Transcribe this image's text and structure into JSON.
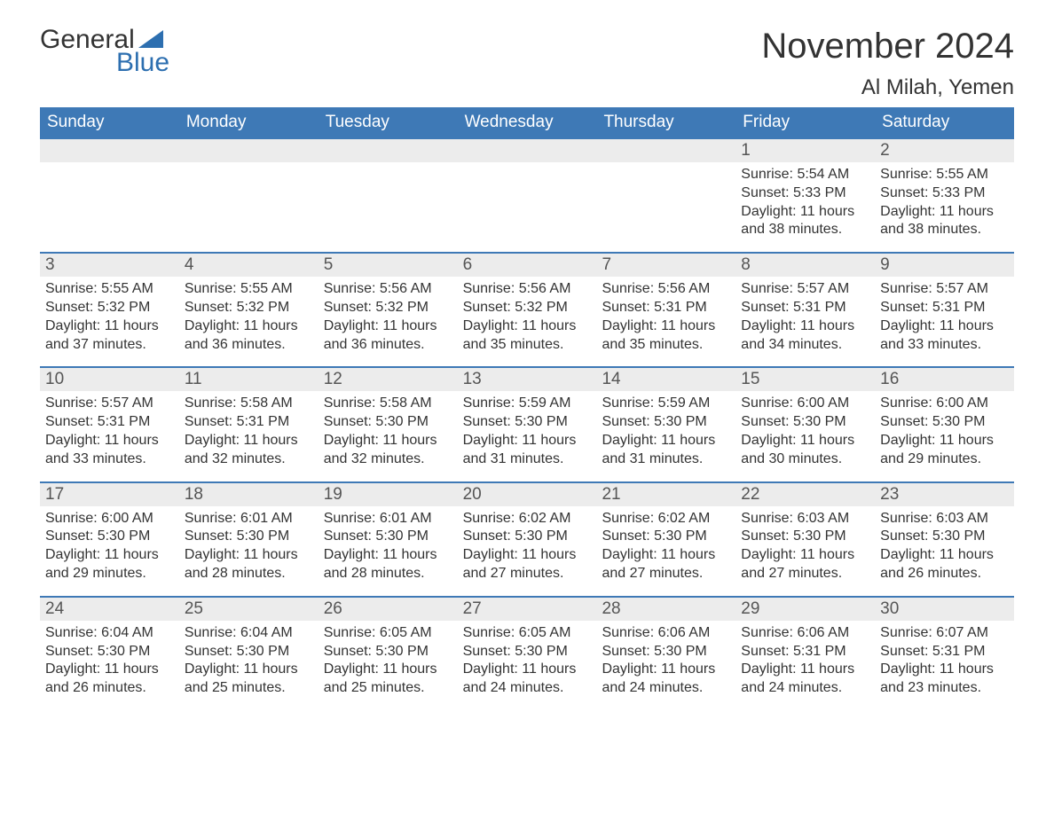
{
  "brand": {
    "general": "General",
    "blue": "Blue"
  },
  "title": {
    "month": "November 2024",
    "location": "Al Milah, Yemen"
  },
  "colors": {
    "header_bg": "#3e79b6",
    "header_text": "#ffffff",
    "daynum_bg": "#ececec",
    "daynum_border": "#3e79b6",
    "body_text": "#333333",
    "brand_blue": "#2d6fb0",
    "page_bg": "#ffffff"
  },
  "fonts": {
    "base_family": "Arial",
    "title_size_pt": 40,
    "location_size_pt": 24,
    "dow_size_pt": 19,
    "body_size_pt": 16
  },
  "dow": [
    "Sunday",
    "Monday",
    "Tuesday",
    "Wednesday",
    "Thursday",
    "Friday",
    "Saturday"
  ],
  "labels": {
    "sunrise": "Sunrise:",
    "sunset": "Sunset:",
    "daylight": "Daylight:"
  },
  "weeks": [
    [
      {
        "blank": true
      },
      {
        "blank": true
      },
      {
        "blank": true
      },
      {
        "blank": true
      },
      {
        "blank": true
      },
      {
        "n": 1,
        "sunrise": "5:54 AM",
        "sunset": "5:33 PM",
        "daylight": "11 hours and 38 minutes."
      },
      {
        "n": 2,
        "sunrise": "5:55 AM",
        "sunset": "5:33 PM",
        "daylight": "11 hours and 38 minutes."
      }
    ],
    [
      {
        "n": 3,
        "sunrise": "5:55 AM",
        "sunset": "5:32 PM",
        "daylight": "11 hours and 37 minutes."
      },
      {
        "n": 4,
        "sunrise": "5:55 AM",
        "sunset": "5:32 PM",
        "daylight": "11 hours and 36 minutes."
      },
      {
        "n": 5,
        "sunrise": "5:56 AM",
        "sunset": "5:32 PM",
        "daylight": "11 hours and 36 minutes."
      },
      {
        "n": 6,
        "sunrise": "5:56 AM",
        "sunset": "5:32 PM",
        "daylight": "11 hours and 35 minutes."
      },
      {
        "n": 7,
        "sunrise": "5:56 AM",
        "sunset": "5:31 PM",
        "daylight": "11 hours and 35 minutes."
      },
      {
        "n": 8,
        "sunrise": "5:57 AM",
        "sunset": "5:31 PM",
        "daylight": "11 hours and 34 minutes."
      },
      {
        "n": 9,
        "sunrise": "5:57 AM",
        "sunset": "5:31 PM",
        "daylight": "11 hours and 33 minutes."
      }
    ],
    [
      {
        "n": 10,
        "sunrise": "5:57 AM",
        "sunset": "5:31 PM",
        "daylight": "11 hours and 33 minutes."
      },
      {
        "n": 11,
        "sunrise": "5:58 AM",
        "sunset": "5:31 PM",
        "daylight": "11 hours and 32 minutes."
      },
      {
        "n": 12,
        "sunrise": "5:58 AM",
        "sunset": "5:30 PM",
        "daylight": "11 hours and 32 minutes."
      },
      {
        "n": 13,
        "sunrise": "5:59 AM",
        "sunset": "5:30 PM",
        "daylight": "11 hours and 31 minutes."
      },
      {
        "n": 14,
        "sunrise": "5:59 AM",
        "sunset": "5:30 PM",
        "daylight": "11 hours and 31 minutes."
      },
      {
        "n": 15,
        "sunrise": "6:00 AM",
        "sunset": "5:30 PM",
        "daylight": "11 hours and 30 minutes."
      },
      {
        "n": 16,
        "sunrise": "6:00 AM",
        "sunset": "5:30 PM",
        "daylight": "11 hours and 29 minutes."
      }
    ],
    [
      {
        "n": 17,
        "sunrise": "6:00 AM",
        "sunset": "5:30 PM",
        "daylight": "11 hours and 29 minutes."
      },
      {
        "n": 18,
        "sunrise": "6:01 AM",
        "sunset": "5:30 PM",
        "daylight": "11 hours and 28 minutes."
      },
      {
        "n": 19,
        "sunrise": "6:01 AM",
        "sunset": "5:30 PM",
        "daylight": "11 hours and 28 minutes."
      },
      {
        "n": 20,
        "sunrise": "6:02 AM",
        "sunset": "5:30 PM",
        "daylight": "11 hours and 27 minutes."
      },
      {
        "n": 21,
        "sunrise": "6:02 AM",
        "sunset": "5:30 PM",
        "daylight": "11 hours and 27 minutes."
      },
      {
        "n": 22,
        "sunrise": "6:03 AM",
        "sunset": "5:30 PM",
        "daylight": "11 hours and 27 minutes."
      },
      {
        "n": 23,
        "sunrise": "6:03 AM",
        "sunset": "5:30 PM",
        "daylight": "11 hours and 26 minutes."
      }
    ],
    [
      {
        "n": 24,
        "sunrise": "6:04 AM",
        "sunset": "5:30 PM",
        "daylight": "11 hours and 26 minutes."
      },
      {
        "n": 25,
        "sunrise": "6:04 AM",
        "sunset": "5:30 PM",
        "daylight": "11 hours and 25 minutes."
      },
      {
        "n": 26,
        "sunrise": "6:05 AM",
        "sunset": "5:30 PM",
        "daylight": "11 hours and 25 minutes."
      },
      {
        "n": 27,
        "sunrise": "6:05 AM",
        "sunset": "5:30 PM",
        "daylight": "11 hours and 24 minutes."
      },
      {
        "n": 28,
        "sunrise": "6:06 AM",
        "sunset": "5:30 PM",
        "daylight": "11 hours and 24 minutes."
      },
      {
        "n": 29,
        "sunrise": "6:06 AM",
        "sunset": "5:31 PM",
        "daylight": "11 hours and 24 minutes."
      },
      {
        "n": 30,
        "sunrise": "6:07 AM",
        "sunset": "5:31 PM",
        "daylight": "11 hours and 23 minutes."
      }
    ]
  ]
}
